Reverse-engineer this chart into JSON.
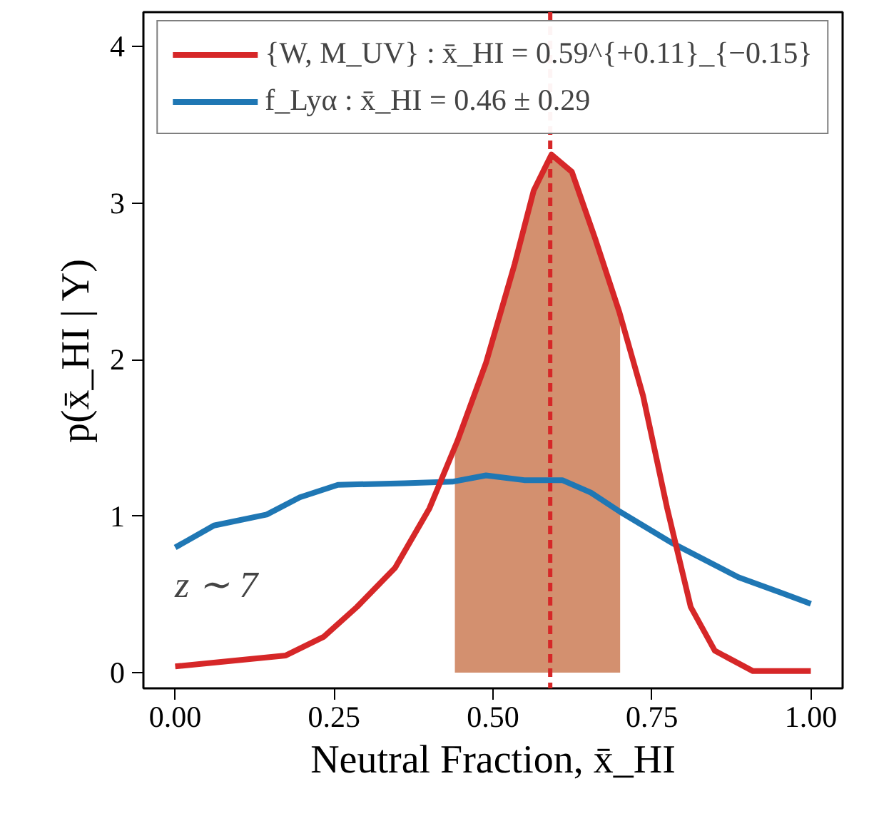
{
  "chart_data": {
    "type": "line",
    "xlabel": "Neutral Fraction, x̄_HI",
    "ylabel": "p(x̄_HI | Y)",
    "series": [
      {
        "name": "{W, M_UV} : x̄_HI = 0.59^{+0.11}_{−0.15}",
        "color": "#d62728",
        "x": [
          0,
          0.174,
          0.234,
          0.286,
          0.346,
          0.4,
          0.444,
          0.489,
          0.534,
          0.564,
          0.592,
          0.624,
          0.661,
          0.699,
          0.736,
          0.774,
          0.811,
          0.849,
          0.909,
          1.0
        ],
        "values": [
          0.04,
          0.11,
          0.23,
          0.42,
          0.67,
          1.05,
          1.48,
          1.98,
          2.61,
          3.08,
          3.31,
          3.2,
          2.77,
          2.3,
          1.77,
          1.05,
          0.42,
          0.14,
          0.01,
          0.01
        ]
      },
      {
        "type": "area",
        "color": "#d3906f",
        "x": [
          0.44,
          0.444,
          0.489,
          0.534,
          0.564,
          0.592,
          0.624,
          0.661,
          0.699,
          0.7
        ],
        "values": [
          1.44,
          1.48,
          1.98,
          2.61,
          3.08,
          3.31,
          3.2,
          2.77,
          2.3,
          2.29
        ]
      },
      {
        "name": "f_Lyα : x̄_HI = 0.46 ± 0.29",
        "color": "#1f77b4",
        "x": [
          0,
          0.061,
          0.144,
          0.196,
          0.256,
          0.361,
          0.436,
          0.489,
          0.549,
          0.609,
          0.654,
          0.699,
          0.781,
          0.886,
          0.954,
          1.0
        ],
        "values": [
          0.8,
          0.94,
          1.01,
          1.12,
          1.2,
          1.21,
          1.22,
          1.26,
          1.23,
          1.23,
          1.15,
          1.03,
          0.83,
          0.61,
          0.51,
          0.44
        ]
      }
    ],
    "ref_lines": [
      {
        "axis": "x",
        "value": 0.59,
        "color": "#d62728",
        "line_style": "dashed"
      }
    ],
    "annotations": [
      "z ∼ 7"
    ],
    "xlim": [
      -0.05,
      1.05
    ],
    "ylim": [
      -0.1,
      4.22
    ],
    "xticks": [
      {
        "value": 0,
        "label": "0.00"
      },
      {
        "value": 0.25,
        "label": "0.25"
      },
      {
        "value": 0.5,
        "label": "0.50"
      },
      {
        "value": 0.75,
        "label": "0.75"
      },
      {
        "value": 1,
        "label": "1.00"
      }
    ],
    "yticks": [
      0,
      1,
      2,
      3,
      4
    ],
    "grid": false,
    "legend": "top",
    "line_style": "solid",
    "marker": "none"
  }
}
